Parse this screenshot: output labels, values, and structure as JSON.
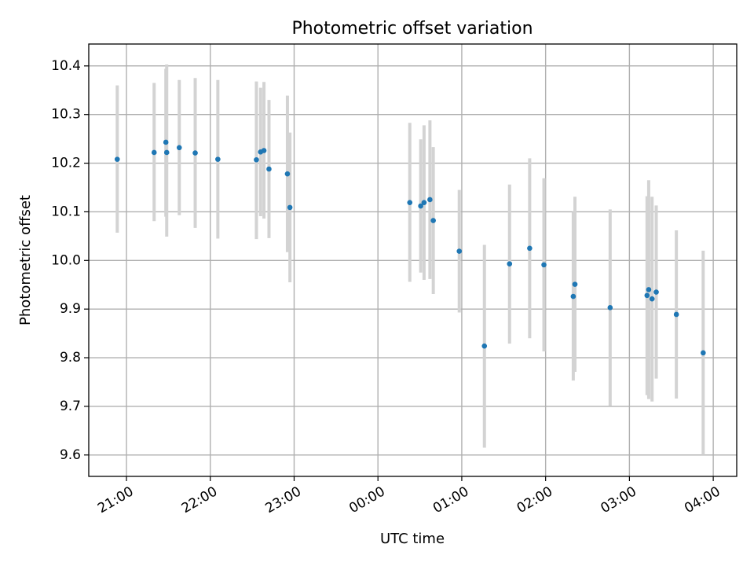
{
  "chart_data": {
    "type": "scatter",
    "title": "Photometric offset variation",
    "xlabel": "UTC time",
    "ylabel": "Photometric offset",
    "x_unit": "hours since 21:00 UTC",
    "xlim": [
      -0.45,
      7.28
    ],
    "ylim": [
      9.556,
      10.445
    ],
    "x_ticks": [
      {
        "value": 0,
        "label": "21:00"
      },
      {
        "value": 1,
        "label": "22:00"
      },
      {
        "value": 2,
        "label": "23:00"
      },
      {
        "value": 3,
        "label": "00:00"
      },
      {
        "value": 4,
        "label": "01:00"
      },
      {
        "value": 5,
        "label": "02:00"
      },
      {
        "value": 6,
        "label": "03:00"
      },
      {
        "value": 7,
        "label": "04:00"
      }
    ],
    "y_ticks": [
      {
        "value": 9.6,
        "label": "9.6"
      },
      {
        "value": 9.7,
        "label": "9.7"
      },
      {
        "value": 9.8,
        "label": "9.8"
      },
      {
        "value": 9.9,
        "label": "9.9"
      },
      {
        "value": 10.0,
        "label": "10.0"
      },
      {
        "value": 10.1,
        "label": "10.1"
      },
      {
        "value": 10.2,
        "label": "10.2"
      },
      {
        "value": 10.3,
        "label": "10.3"
      },
      {
        "value": 10.4,
        "label": "10.4"
      }
    ],
    "grid": true,
    "point_color": "#1f77b4",
    "errorbar_color": "#d3d3d3",
    "points": [
      {
        "x": -0.11,
        "y": 10.208,
        "err_low": 10.057,
        "err_high": 10.36
      },
      {
        "x": 0.33,
        "y": 10.222,
        "err_low": 10.081,
        "err_high": 10.365
      },
      {
        "x": 0.47,
        "y": 10.243,
        "err_low": 10.09,
        "err_high": 10.394
      },
      {
        "x": 0.48,
        "y": 10.222,
        "err_low": 10.049,
        "err_high": 10.403
      },
      {
        "x": 0.63,
        "y": 10.232,
        "err_low": 10.093,
        "err_high": 10.371
      },
      {
        "x": 0.82,
        "y": 10.221,
        "err_low": 10.067,
        "err_high": 10.375
      },
      {
        "x": 1.09,
        "y": 10.208,
        "err_low": 10.045,
        "err_high": 10.371
      },
      {
        "x": 1.55,
        "y": 10.207,
        "err_low": 10.044,
        "err_high": 10.368
      },
      {
        "x": 1.6,
        "y": 10.223,
        "err_low": 10.091,
        "err_high": 10.355
      },
      {
        "x": 1.64,
        "y": 10.226,
        "err_low": 10.086,
        "err_high": 10.367
      },
      {
        "x": 1.7,
        "y": 10.188,
        "err_low": 10.046,
        "err_high": 10.33
      },
      {
        "x": 1.92,
        "y": 10.178,
        "err_low": 10.017,
        "err_high": 10.339
      },
      {
        "x": 1.95,
        "y": 10.109,
        "err_low": 9.955,
        "err_high": 10.263
      },
      {
        "x": 3.38,
        "y": 10.119,
        "err_low": 9.956,
        "err_high": 10.283
      },
      {
        "x": 3.51,
        "y": 10.112,
        "err_low": 9.975,
        "err_high": 10.249
      },
      {
        "x": 3.55,
        "y": 10.119,
        "err_low": 9.96,
        "err_high": 10.278
      },
      {
        "x": 3.62,
        "y": 10.125,
        "err_low": 9.962,
        "err_high": 10.288
      },
      {
        "x": 3.66,
        "y": 10.082,
        "err_low": 9.931,
        "err_high": 10.233
      },
      {
        "x": 3.97,
        "y": 10.019,
        "err_low": 9.893,
        "err_high": 10.145
      },
      {
        "x": 4.27,
        "y": 9.824,
        "err_low": 9.615,
        "err_high": 10.032
      },
      {
        "x": 4.57,
        "y": 9.993,
        "err_low": 9.829,
        "err_high": 10.156
      },
      {
        "x": 4.81,
        "y": 10.025,
        "err_low": 9.84,
        "err_high": 10.21
      },
      {
        "x": 4.98,
        "y": 9.991,
        "err_low": 9.813,
        "err_high": 10.169
      },
      {
        "x": 5.33,
        "y": 9.926,
        "err_low": 9.753,
        "err_high": 10.1
      },
      {
        "x": 5.35,
        "y": 9.951,
        "err_low": 9.771,
        "err_high": 10.131
      },
      {
        "x": 5.77,
        "y": 9.903,
        "err_low": 9.701,
        "err_high": 10.105
      },
      {
        "x": 6.21,
        "y": 9.928,
        "err_low": 9.723,
        "err_high": 10.132
      },
      {
        "x": 6.23,
        "y": 9.94,
        "err_low": 9.715,
        "err_high": 10.165
      },
      {
        "x": 6.27,
        "y": 9.921,
        "err_low": 9.71,
        "err_high": 10.131
      },
      {
        "x": 6.32,
        "y": 9.935,
        "err_low": 9.757,
        "err_high": 10.113
      },
      {
        "x": 6.56,
        "y": 9.889,
        "err_low": 9.716,
        "err_high": 10.062
      },
      {
        "x": 6.88,
        "y": 9.81,
        "err_low": 9.6,
        "err_high": 10.02
      }
    ]
  }
}
